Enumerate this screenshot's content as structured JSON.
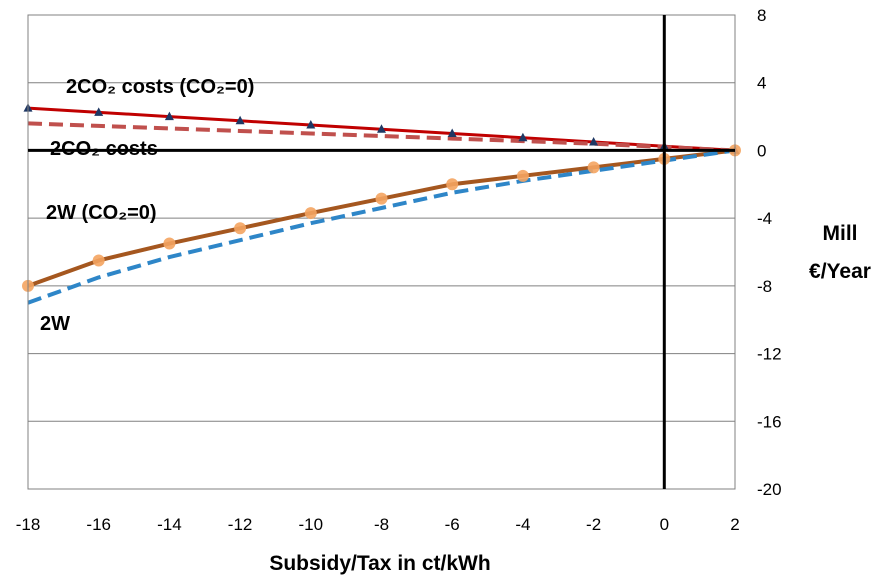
{
  "chart_data": {
    "type": "line",
    "xlabel": "Subsidy/Tax in ct/kWh",
    "ylabel_line1": "Mill",
    "ylabel_line2": "€/Year",
    "xlim": [
      -18,
      2
    ],
    "ylim": [
      -20,
      8
    ],
    "xticks": [
      -18,
      -16,
      -14,
      -12,
      -10,
      -8,
      -6,
      -4,
      -2,
      0,
      2
    ],
    "yticks": [
      8,
      4,
      0,
      -4,
      -8,
      -12,
      -16,
      -20
    ],
    "grid": "horizontal",
    "colors": {
      "co2_costs_co2_0": "#c00000",
      "co2_costs": "#c0504d",
      "w_co2_0": "#a5571f",
      "w": "#2e86c8",
      "markers_triangle": "#1f3864",
      "markers_circle": "#f4a460",
      "axis_line": "#000000",
      "grid": "#808080"
    },
    "series": [
      {
        "name": "2CO₂ costs (CO₂=0)",
        "style": "solid",
        "marker": "triangle",
        "x": [
          -18,
          -16,
          -14,
          -12,
          -10,
          -8,
          -6,
          -4,
          -2,
          0,
          2
        ],
        "y": [
          2.5,
          2.25,
          2.0,
          1.75,
          1.5,
          1.25,
          1.0,
          0.75,
          0.5,
          0.25,
          0
        ]
      },
      {
        "name": "2CO₂ costs",
        "style": "dashed",
        "marker": "none",
        "x": [
          -18,
          -16,
          -14,
          -12,
          -10,
          -8,
          -6,
          -4,
          -2,
          0,
          2
        ],
        "y": [
          1.6,
          1.45,
          1.3,
          1.15,
          1.0,
          0.85,
          0.7,
          0.55,
          0.4,
          0.2,
          0
        ]
      },
      {
        "name": "2W (CO₂=0)",
        "style": "solid",
        "marker": "circle",
        "x": [
          -18,
          -16,
          -14,
          -12,
          -10,
          -8,
          -6,
          -4,
          -2,
          0,
          2
        ],
        "y": [
          -8,
          -6.5,
          -5.5,
          -4.6,
          -3.7,
          -2.85,
          -2.0,
          -1.5,
          -1.0,
          -0.5,
          0
        ]
      },
      {
        "name": "2W",
        "style": "dashed",
        "marker": "none",
        "x": [
          -18,
          -16,
          -14,
          -12,
          -10,
          -8,
          -6,
          -4,
          -2,
          0,
          2
        ],
        "y": [
          -9.0,
          -7.5,
          -6.3,
          -5.3,
          -4.3,
          -3.4,
          -2.5,
          -1.8,
          -1.2,
          -0.6,
          0
        ]
      }
    ],
    "annotations": {
      "co2_costs_co2_0": "2CO₂ costs (CO₂=0)",
      "co2_costs": "2CO₂ costs",
      "w_co2_0": "2W (CO₂=0)",
      "w": "2W"
    }
  }
}
